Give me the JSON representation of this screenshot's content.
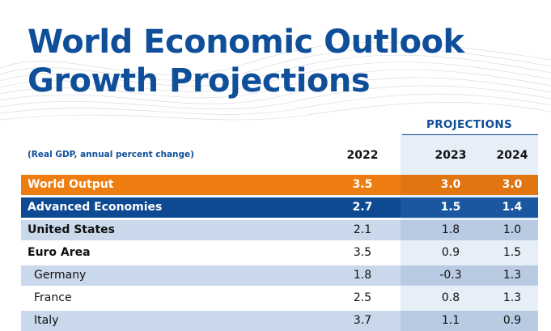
{
  "title_line1": "World Economic Outlook",
  "title_line2": "Growth Projections",
  "projections_label": "PROJECTIONS",
  "note": "(Real GDP, annual percent change)",
  "years": [
    "2022",
    "2023",
    "2024"
  ],
  "colors": {
    "title": "#0f4f9a",
    "world_output_bg": "#ee7d11",
    "advanced_bg": "#0e4a94",
    "light_row_bg": "#c9d8ea",
    "proj_col_bg": "#e6eef7"
  },
  "rows": [
    {
      "name": "World Output",
      "v2022": "3.5",
      "v2023": "3.0",
      "v2024": "3.0"
    },
    {
      "name": "Advanced Economies",
      "v2022": "2.7",
      "v2023": "1.5",
      "v2024": "1.4"
    },
    {
      "name": "United States",
      "v2022": "2.1",
      "v2023": "1.8",
      "v2024": "1.0"
    },
    {
      "name": "Euro Area",
      "v2022": "3.5",
      "v2023": "0.9",
      "v2024": "1.5"
    },
    {
      "name": "Germany",
      "v2022": "1.8",
      "v2023": "-0.3",
      "v2024": "1.3"
    },
    {
      "name": "France",
      "v2022": "2.5",
      "v2023": "0.8",
      "v2024": "1.3"
    },
    {
      "name": "Italy",
      "v2022": "3.7",
      "v2023": "1.1",
      "v2024": "0.9"
    }
  ]
}
